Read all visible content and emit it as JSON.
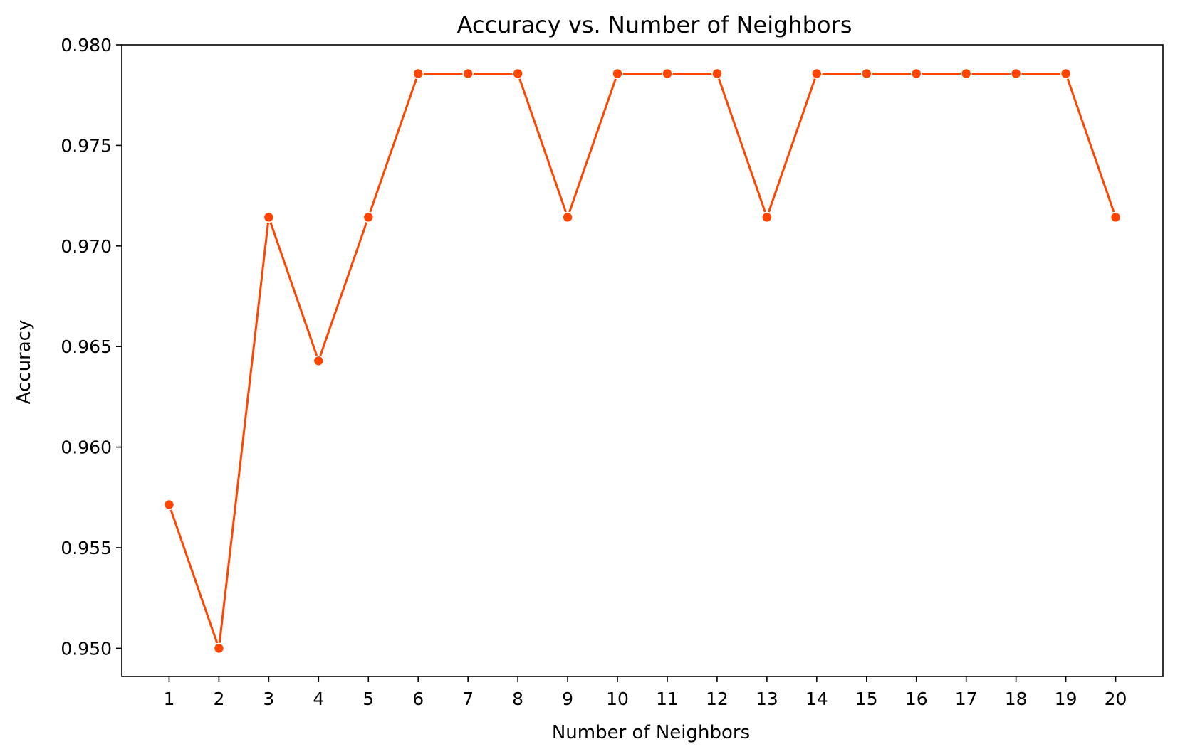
{
  "chart_data": {
    "type": "line",
    "title": "Accuracy vs. Number of Neighbors",
    "xlabel": "Number of Neighbors",
    "ylabel": "Accuracy",
    "x": [
      1,
      2,
      3,
      4,
      5,
      6,
      7,
      8,
      9,
      10,
      11,
      12,
      13,
      14,
      15,
      16,
      17,
      18,
      19,
      20
    ],
    "series": [
      {
        "name": "",
        "values": [
          0.95714,
          0.95,
          0.97143,
          0.96429,
          0.97143,
          0.97857,
          0.97857,
          0.97857,
          0.97143,
          0.97857,
          0.97857,
          0.97857,
          0.97143,
          0.97857,
          0.97857,
          0.97857,
          0.97857,
          0.97857,
          0.97857,
          0.97143
        ],
        "color": "#ff4500"
      }
    ],
    "xlim": [
      0.05,
      20.95
    ],
    "ylim": [
      0.9486,
      0.98
    ],
    "xticks": [
      "1",
      "2",
      "3",
      "4",
      "5",
      "6",
      "7",
      "8",
      "9",
      "10",
      "11",
      "12",
      "13",
      "14",
      "15",
      "16",
      "17",
      "18",
      "19",
      "20"
    ],
    "yticks": [
      0.95,
      0.955,
      0.96,
      0.965,
      0.97,
      0.975,
      0.98
    ],
    "ytick_labels": [
      "0.950",
      "0.955",
      "0.960",
      "0.965",
      "0.970",
      "0.975",
      "0.980"
    ],
    "grid": false,
    "legend": "none"
  }
}
